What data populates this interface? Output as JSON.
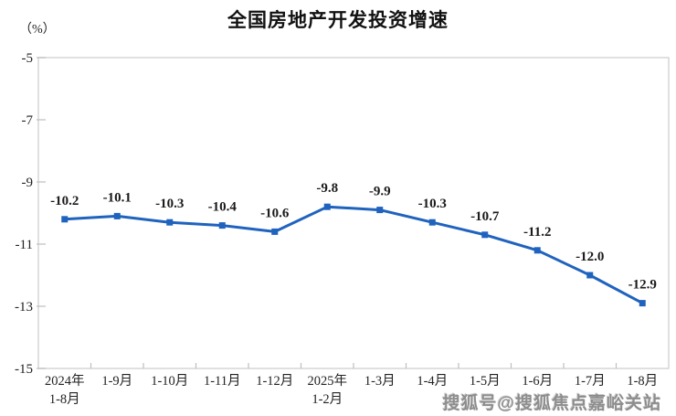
{
  "title": "全国房地产开发投资增速",
  "y_unit_label": "（%）",
  "watermark": "搜狐号@搜狐焦点嘉峪关站",
  "colors": {
    "line": "#1F63BE",
    "axis_border": "#D6D6D6",
    "tick": "#BFBFBF",
    "label_text": "#1A1A1A",
    "axis_text": "#222222",
    "watermark": "#7D7D7D"
  },
  "chart_data": {
    "type": "line",
    "title": "全国房地产开发投资增速",
    "ylabel": "（%）",
    "xlabel": "",
    "grid": false,
    "legend": "none",
    "marker": "square",
    "line_color": "#1F63BE",
    "categories": [
      [
        "2024年",
        "1-8月"
      ],
      [
        "1-9月"
      ],
      [
        "1-10月"
      ],
      [
        "1-11月"
      ],
      [
        "1-12月"
      ],
      [
        "2025年",
        "1-2月"
      ],
      [
        "1-3月"
      ],
      [
        "1-4月"
      ],
      [
        "1-5月"
      ],
      [
        "1-6月"
      ],
      [
        "1-7月"
      ],
      [
        "1-8月"
      ]
    ],
    "values": [
      -10.2,
      -10.1,
      -10.3,
      -10.4,
      -10.6,
      -9.8,
      -9.9,
      -10.3,
      -10.7,
      -11.2,
      -12.0,
      -12.9
    ],
    "data_labels": [
      "-10.2",
      "-10.1",
      "-10.3",
      "-10.4",
      "-10.6",
      "-9.8",
      "-9.9",
      "-10.3",
      "-10.7",
      "-11.2",
      "-12.0",
      "-12.9"
    ],
    "ylim": [
      -15,
      -5
    ],
    "yticks": [
      -5,
      -7,
      -9,
      -11,
      -13,
      -15
    ],
    "ytick_labels": [
      "-5",
      "-7",
      "-9",
      "-11",
      "-13",
      "-15"
    ]
  }
}
